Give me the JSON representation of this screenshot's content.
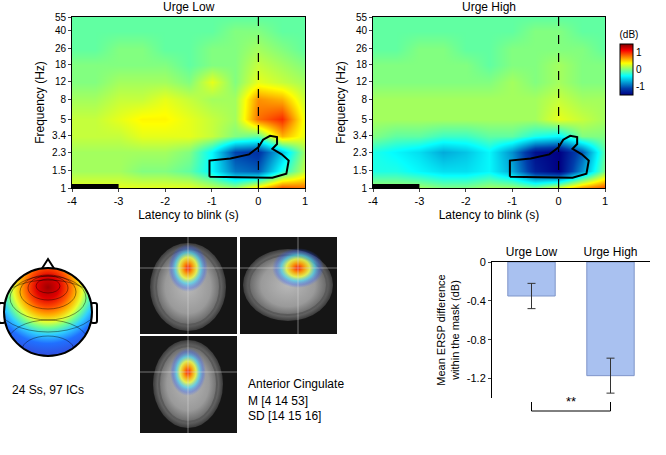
{
  "chart_data": [
    {
      "type": "heatmap",
      "title": "Urge Low",
      "xlabel": "Latency to blink (s)",
      "ylabel": "Frequency (Hz)",
      "x": [
        -4,
        -3.5,
        -3,
        -2.5,
        -2,
        -1.5,
        -1,
        -0.5,
        0,
        0.5,
        1
      ],
      "y": [
        1,
        1.5,
        2.3,
        3.4,
        5,
        8,
        12,
        18,
        26,
        40,
        55
      ],
      "z": [
        [
          0.3,
          0.3,
          0.3,
          0.3,
          0.3,
          0.3,
          0.2,
          0.1,
          0.5,
          0.9,
          0.8
        ],
        [
          0.1,
          0.1,
          0.1,
          0.0,
          0.0,
          -0.1,
          -0.4,
          -0.9,
          -1.0,
          -0.3,
          0.2
        ],
        [
          0.1,
          0.1,
          0.1,
          0.1,
          0.1,
          0.0,
          -0.4,
          -1.1,
          -1.2,
          -0.6,
          0.1
        ],
        [
          0.2,
          0.2,
          0.2,
          0.3,
          0.3,
          0.3,
          0.2,
          0.0,
          -0.1,
          0.6,
          0.3
        ],
        [
          0.2,
          0.2,
          0.3,
          0.4,
          0.4,
          0.3,
          0.2,
          0.1,
          0.8,
          1.0,
          0.3
        ],
        [
          0.1,
          0.1,
          0.2,
          0.2,
          0.3,
          0.2,
          0.1,
          0.1,
          0.7,
          0.6,
          0.2
        ],
        [
          0.0,
          0.0,
          0.1,
          0.1,
          0.1,
          0.0,
          0.3,
          0.0,
          0.3,
          0.2,
          0.1
        ],
        [
          0.0,
          0.0,
          0.0,
          0.0,
          0.0,
          -0.1,
          0.0,
          0.0,
          0.2,
          0.1,
          0.0
        ],
        [
          -0.1,
          -0.1,
          0.0,
          0.0,
          -0.1,
          -0.1,
          0.0,
          0.0,
          0.1,
          0.0,
          -0.1
        ],
        [
          -0.1,
          -0.1,
          -0.1,
          -0.1,
          -0.1,
          -0.1,
          -0.1,
          0.0,
          0.0,
          -0.1,
          -0.1
        ],
        [
          -0.1,
          -0.1,
          -0.1,
          -0.1,
          -0.1,
          -0.1,
          -0.1,
          -0.1,
          -0.1,
          -0.1,
          -0.1
        ]
      ],
      "zlim": [
        -1.5,
        1.5
      ],
      "xlim": [
        -4,
        1
      ],
      "xticks": [
        -4,
        -3,
        -2,
        -1,
        0,
        1
      ],
      "ylim": [
        1,
        55
      ],
      "yticks": [
        1,
        1.5,
        2.3,
        3.4,
        5,
        8,
        12,
        18,
        26,
        40,
        55
      ],
      "log": "y",
      "mask_outline": {
        "x": [
          -1.05,
          -1.05,
          -0.6,
          -0.2,
          0,
          0.1,
          0.25,
          0.4,
          0.4,
          0.3,
          0.5,
          0.65,
          0.6,
          0.3,
          -1.05
        ],
        "y": [
          1.3,
          1.9,
          2.0,
          2.2,
          2.6,
          3.1,
          3.4,
          3.3,
          2.8,
          2.5,
          2.2,
          1.9,
          1.4,
          1.27,
          1.3
        ]
      },
      "event_line_x": 0,
      "baseline": [
        -4,
        -3
      ]
    },
    {
      "type": "heatmap",
      "title": "Urge High",
      "xlabel": "Latency to blink (s)",
      "ylabel": "Frequency (Hz)",
      "x": [
        -4,
        -3.5,
        -3,
        -2.5,
        -2,
        -1.5,
        -1,
        -0.5,
        0,
        0.5,
        1
      ],
      "y": [
        1,
        1.5,
        2.3,
        3.4,
        5,
        8,
        12,
        18,
        26,
        40,
        55
      ],
      "z": [
        [
          0.1,
          0.1,
          0.1,
          0.0,
          0.0,
          0.1,
          0.1,
          0.0,
          0.3,
          0.7,
          0.9
        ],
        [
          -0.3,
          -0.3,
          -0.4,
          -0.5,
          -0.5,
          -0.4,
          -0.7,
          -1.3,
          -1.5,
          -0.8,
          0.0
        ],
        [
          -0.3,
          -0.4,
          -0.5,
          -0.7,
          -0.6,
          -0.4,
          -0.8,
          -1.4,
          -1.5,
          -1.0,
          -0.1
        ],
        [
          0.0,
          -0.1,
          -0.1,
          -0.2,
          -0.2,
          -0.1,
          -0.1,
          -0.3,
          -0.4,
          0.0,
          0.0
        ],
        [
          0.1,
          0.1,
          0.1,
          0.1,
          0.1,
          0.1,
          0.1,
          0.1,
          0.3,
          0.2,
          0.1
        ],
        [
          0.1,
          0.1,
          0.1,
          0.1,
          0.1,
          0.1,
          0.1,
          0.1,
          0.2,
          0.1,
          0.1
        ],
        [
          0.0,
          0.0,
          0.0,
          0.0,
          0.0,
          0.0,
          0.1,
          0.0,
          0.1,
          0.0,
          0.0
        ],
        [
          0.0,
          0.0,
          0.0,
          0.0,
          0.0,
          -0.1,
          0.0,
          0.0,
          0.1,
          0.0,
          0.0
        ],
        [
          -0.1,
          -0.1,
          0.0,
          0.0,
          -0.1,
          -0.1,
          0.0,
          0.0,
          0.0,
          0.0,
          -0.1
        ],
        [
          -0.1,
          -0.1,
          -0.1,
          -0.1,
          -0.1,
          -0.1,
          -0.1,
          0.0,
          0.0,
          -0.1,
          -0.1
        ],
        [
          -0.1,
          -0.1,
          -0.1,
          -0.1,
          -0.1,
          -0.1,
          -0.1,
          -0.1,
          -0.1,
          -0.1,
          -0.1
        ]
      ],
      "zlim": [
        -1.5,
        1.5
      ],
      "colorbar": {
        "title": "(dB)",
        "ticks": [
          -1,
          0,
          1
        ]
      },
      "xlim": [
        -4,
        1
      ],
      "xticks": [
        -4,
        -3,
        -2,
        -1,
        0,
        1
      ],
      "ylim": [
        1,
        55
      ],
      "yticks": [
        1,
        1.5,
        2.3,
        3.4,
        5,
        8,
        12,
        18,
        26,
        40,
        55
      ],
      "log": "y",
      "mask_outline": {
        "x": [
          -1.05,
          -1.05,
          -0.6,
          -0.2,
          0,
          0.1,
          0.25,
          0.4,
          0.4,
          0.3,
          0.5,
          0.65,
          0.6,
          0.3,
          -1.05
        ],
        "y": [
          1.3,
          1.9,
          2.0,
          2.2,
          2.6,
          3.1,
          3.4,
          3.3,
          2.8,
          2.5,
          2.2,
          1.9,
          1.4,
          1.27,
          1.3
        ]
      },
      "event_line_x": 0,
      "baseline": [
        -4,
        -3
      ]
    },
    {
      "type": "bar",
      "categories": [
        "Urge Low",
        "Urge High"
      ],
      "values": [
        -0.35,
        -1.17
      ],
      "errors": [
        0.13,
        0.18
      ],
      "color": "#a9c1f0",
      "ylabel": [
        "Mean ERSP difference",
        "within the mask (dB)"
      ],
      "ylim": [
        -1.4,
        0
      ],
      "yticks": [
        0,
        -0.4,
        -0.8,
        -1.2
      ],
      "significance": "**"
    }
  ],
  "figure_text": {
    "topography": "24 Ss, 97 ICs",
    "region": "Anterior Cingulate",
    "mean": "M [4 14 53]",
    "sd": "SD [14 15 16]"
  }
}
